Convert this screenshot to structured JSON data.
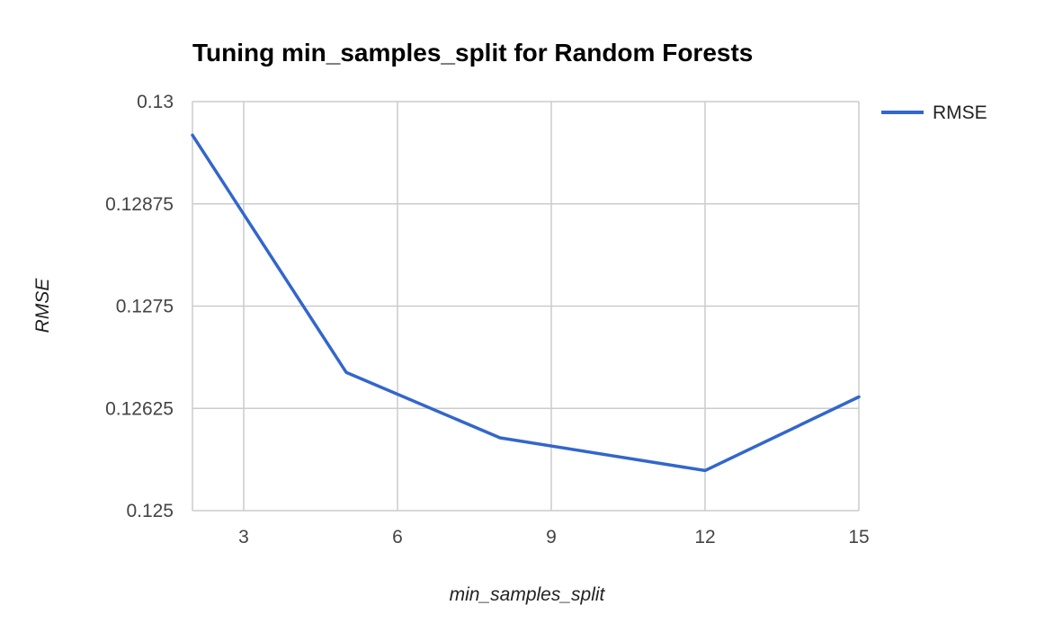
{
  "chart_data": {
    "type": "line",
    "title": "Tuning min_samples_split for Random Forests",
    "xlabel": "min_samples_split",
    "ylabel": "RMSE",
    "xlim": [
      2,
      15
    ],
    "ylim": [
      0.125,
      0.13
    ],
    "x_ticks": [
      3,
      6,
      9,
      12,
      15
    ],
    "x_tick_labels": [
      "3",
      "6",
      "9",
      "12",
      "15"
    ],
    "y_ticks": [
      0.125,
      0.12625,
      0.1275,
      0.12875,
      0.13
    ],
    "y_tick_labels": [
      "0.125",
      "0.12625",
      "0.1275",
      "0.12875",
      "0.13"
    ],
    "grid": true,
    "legend_position": "top-right",
    "x": [
      2,
      5,
      8,
      12,
      15
    ],
    "series": [
      {
        "name": "RMSE",
        "color": "#3366cc",
        "values": [
          0.12959,
          0.12669,
          0.12589,
          0.12549,
          0.12639
        ]
      }
    ]
  }
}
